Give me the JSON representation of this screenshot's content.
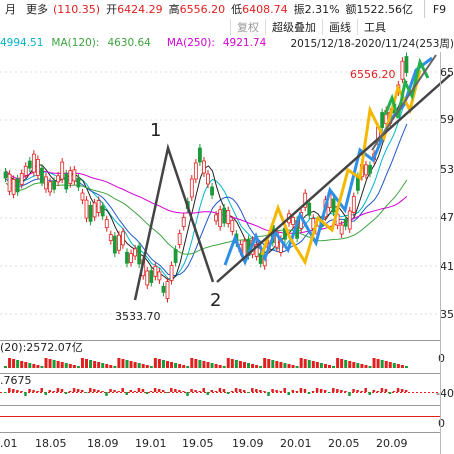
{
  "top": {
    "tab_month": "月",
    "tab_more": "更多",
    "change": "(110.35)",
    "open_label": "开",
    "open": "6424.29",
    "high_label": "高",
    "high": "6556.20",
    "low_label": "低",
    "low": "6408.74",
    "amp_label": "振",
    "amp": "2.31%",
    "vol_label": "额",
    "vol": "1522.56亿",
    "f9": "F9"
  },
  "toolbar": {
    "restore": "复权",
    "overlay": "超级叠加",
    "draw": "画线",
    "tools": "工具"
  },
  "ma": {
    "ma_a": "4994.51",
    "ma120_label": "MA(120):",
    "ma120": "4630.64",
    "ma250_label": "MA(250):",
    "ma250": "4921.74",
    "range": "2015/12/18-2020/11/24(253周)"
  },
  "annotations": {
    "high_price": "6556.20",
    "low_price": "3533.70",
    "label1": "1",
    "label2": "2"
  },
  "yaxis": {
    "labels": [
      "65",
      "59",
      "53",
      "47",
      "41",
      "35"
    ]
  },
  "sub1": {
    "label": "(20):2572.07亿",
    "right": "0"
  },
  "sub2": {
    "label": ".7675",
    "right": "-40"
  },
  "sub3": {
    "right": "0"
  },
  "xaxis": {
    "labels": [
      ".01",
      "18.05",
      "18.09",
      "19.01",
      "19.05",
      "19.09",
      "20.01",
      "20.05",
      "20.09"
    ]
  },
  "colors": {
    "up": "#e0201f",
    "down": "#1a9a38",
    "ma_a": "#00b5c8",
    "ma120": "#3fa33f",
    "ma250": "#d400d4",
    "blue_wave": "#2f8fe8",
    "yellow_wave": "#f5b800",
    "green_wave": "#22b14c",
    "trend": "#444444"
  }
}
